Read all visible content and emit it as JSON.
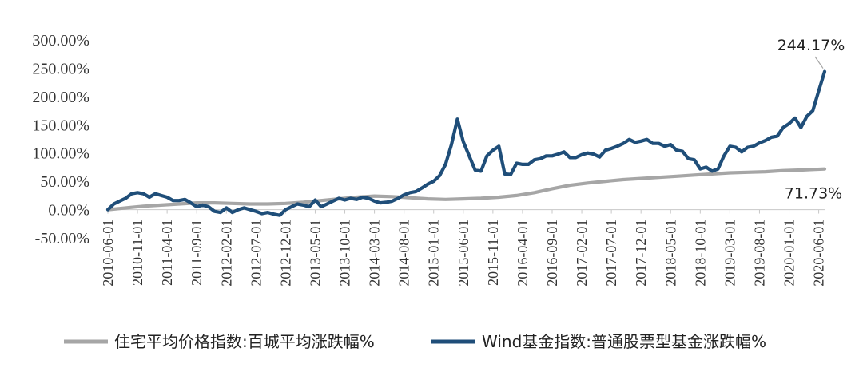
{
  "chart_data": {
    "type": "line",
    "title": "",
    "xlabel": "",
    "ylabel": "",
    "ylim": [
      -50,
      300
    ],
    "y_ticks": [
      "300.00%",
      "250.00%",
      "200.00%",
      "150.00%",
      "100.00%",
      "50.00%",
      "0.00%",
      "-50.00%"
    ],
    "y_tick_values": [
      300,
      250,
      200,
      150,
      100,
      50,
      0,
      -50
    ],
    "x_start": "2010-06",
    "x_end": "2020-07",
    "x_tick_labels": [
      "2010-06-01",
      "2010-11-01",
      "2011-04-01",
      "2011-09-01",
      "2012-02-01",
      "2012-07-01",
      "2012-12-01",
      "2013-05-01",
      "2013-10-01",
      "2014-03-01",
      "2014-08-01",
      "2015-01-01",
      "2015-06-01",
      "2015-11-01",
      "2016-04-01",
      "2016-09-01",
      "2017-02-01",
      "2017-07-01",
      "2017-12-01",
      "2018-05-01",
      "2018-10-01",
      "2019-03-01",
      "2019-08-01",
      "2020-01-01",
      "2020-06-01"
    ],
    "legend": "bottom",
    "grid": false,
    "series": [
      {
        "name": "住宅平均价格指数:百城平均涨跌幅%",
        "color": "#a6a6a6",
        "end_label": "71.73%",
        "points": [
          [
            "2010-06",
            0
          ],
          [
            "2010-08",
            2
          ],
          [
            "2010-10",
            4
          ],
          [
            "2010-12",
            6
          ],
          [
            "2011-03",
            8
          ],
          [
            "2011-06",
            10
          ],
          [
            "2011-09",
            12
          ],
          [
            "2011-12",
            12
          ],
          [
            "2012-03",
            11
          ],
          [
            "2012-06",
            10
          ],
          [
            "2012-09",
            10
          ],
          [
            "2012-12",
            11
          ],
          [
            "2013-03",
            13
          ],
          [
            "2013-06",
            16
          ],
          [
            "2013-09",
            19
          ],
          [
            "2013-12",
            22
          ],
          [
            "2014-03",
            24
          ],
          [
            "2014-06",
            23
          ],
          [
            "2014-09",
            21
          ],
          [
            "2014-12",
            19
          ],
          [
            "2015-03",
            18
          ],
          [
            "2015-06",
            19
          ],
          [
            "2015-09",
            20
          ],
          [
            "2015-12",
            22
          ],
          [
            "2016-03",
            25
          ],
          [
            "2016-06",
            30
          ],
          [
            "2016-09",
            37
          ],
          [
            "2016-12",
            43
          ],
          [
            "2017-03",
            47
          ],
          [
            "2017-06",
            50
          ],
          [
            "2017-09",
            53
          ],
          [
            "2017-12",
            55
          ],
          [
            "2018-03",
            57
          ],
          [
            "2018-06",
            59
          ],
          [
            "2018-09",
            61
          ],
          [
            "2018-12",
            63
          ],
          [
            "2019-03",
            65
          ],
          [
            "2019-06",
            66
          ],
          [
            "2019-09",
            67
          ],
          [
            "2019-12",
            69
          ],
          [
            "2020-03",
            70
          ],
          [
            "2020-05",
            71
          ],
          [
            "2020-07",
            71.73
          ]
        ]
      },
      {
        "name": "Wind基金指数:普通股票型基金涨跌幅%",
        "color": "#1f4e79",
        "end_label": "244.17%",
        "points": [
          [
            "2010-06",
            0
          ],
          [
            "2010-07",
            10
          ],
          [
            "2010-08",
            15
          ],
          [
            "2010-09",
            20
          ],
          [
            "2010-10",
            28
          ],
          [
            "2010-11",
            30
          ],
          [
            "2010-12",
            28
          ],
          [
            "2011-01",
            22
          ],
          [
            "2011-02",
            28
          ],
          [
            "2011-03",
            25
          ],
          [
            "2011-04",
            22
          ],
          [
            "2011-05",
            16
          ],
          [
            "2011-06",
            16
          ],
          [
            "2011-07",
            18
          ],
          [
            "2011-08",
            12
          ],
          [
            "2011-09",
            5
          ],
          [
            "2011-10",
            8
          ],
          [
            "2011-11",
            5
          ],
          [
            "2011-12",
            -3
          ],
          [
            "2012-01",
            -5
          ],
          [
            "2012-02",
            3
          ],
          [
            "2012-03",
            -5
          ],
          [
            "2012-04",
            0
          ],
          [
            "2012-05",
            3
          ],
          [
            "2012-06",
            0
          ],
          [
            "2012-07",
            -3
          ],
          [
            "2012-08",
            -7
          ],
          [
            "2012-09",
            -5
          ],
          [
            "2012-10",
            -8
          ],
          [
            "2012-11",
            -10
          ],
          [
            "2012-12",
            0
          ],
          [
            "2013-01",
            5
          ],
          [
            "2013-02",
            10
          ],
          [
            "2013-03",
            8
          ],
          [
            "2013-04",
            5
          ],
          [
            "2013-05",
            17
          ],
          [
            "2013-06",
            5
          ],
          [
            "2013-07",
            10
          ],
          [
            "2013-08",
            15
          ],
          [
            "2013-09",
            20
          ],
          [
            "2013-10",
            17
          ],
          [
            "2013-11",
            20
          ],
          [
            "2013-12",
            18
          ],
          [
            "2014-01",
            22
          ],
          [
            "2014-02",
            20
          ],
          [
            "2014-03",
            15
          ],
          [
            "2014-04",
            12
          ],
          [
            "2014-05",
            13
          ],
          [
            "2014-06",
            15
          ],
          [
            "2014-07",
            20
          ],
          [
            "2014-08",
            26
          ],
          [
            "2014-09",
            30
          ],
          [
            "2014-10",
            32
          ],
          [
            "2014-11",
            38
          ],
          [
            "2014-12",
            45
          ],
          [
            "2015-01",
            50
          ],
          [
            "2015-02",
            60
          ],
          [
            "2015-03",
            80
          ],
          [
            "2015-04",
            115
          ],
          [
            "2015-05",
            160
          ],
          [
            "2015-06",
            120
          ],
          [
            "2015-07",
            95
          ],
          [
            "2015-08",
            70
          ],
          [
            "2015-09",
            68
          ],
          [
            "2015-10",
            95
          ],
          [
            "2015-11",
            105
          ],
          [
            "2015-12",
            112
          ],
          [
            "2016-01",
            63
          ],
          [
            "2016-02",
            62
          ],
          [
            "2016-03",
            82
          ],
          [
            "2016-04",
            80
          ],
          [
            "2016-05",
            80
          ],
          [
            "2016-06",
            88
          ],
          [
            "2016-07",
            90
          ],
          [
            "2016-08",
            95
          ],
          [
            "2016-09",
            95
          ],
          [
            "2016-10",
            98
          ],
          [
            "2016-11",
            102
          ],
          [
            "2016-12",
            92
          ],
          [
            "2017-01",
            92
          ],
          [
            "2017-02",
            97
          ],
          [
            "2017-03",
            100
          ],
          [
            "2017-04",
            98
          ],
          [
            "2017-05",
            93
          ],
          [
            "2017-06",
            105
          ],
          [
            "2017-07",
            108
          ],
          [
            "2017-08",
            112
          ],
          [
            "2017-09",
            117
          ],
          [
            "2017-10",
            124
          ],
          [
            "2017-11",
            119
          ],
          [
            "2017-12",
            121
          ],
          [
            "2018-01",
            124
          ],
          [
            "2018-02",
            117
          ],
          [
            "2018-03",
            117
          ],
          [
            "2018-04",
            112
          ],
          [
            "2018-05",
            115
          ],
          [
            "2018-06",
            105
          ],
          [
            "2018-07",
            103
          ],
          [
            "2018-08",
            90
          ],
          [
            "2018-09",
            88
          ],
          [
            "2018-10",
            72
          ],
          [
            "2018-11",
            75
          ],
          [
            "2018-12",
            68
          ],
          [
            "2019-01",
            72
          ],
          [
            "2019-02",
            95
          ],
          [
            "2019-03",
            112
          ],
          [
            "2019-04",
            110
          ],
          [
            "2019-05",
            102
          ],
          [
            "2019-06",
            110
          ],
          [
            "2019-07",
            112
          ],
          [
            "2019-08",
            118
          ],
          [
            "2019-09",
            122
          ],
          [
            "2019-10",
            128
          ],
          [
            "2019-11",
            130
          ],
          [
            "2019-12",
            145
          ],
          [
            "2020-01",
            152
          ],
          [
            "2020-02",
            162
          ],
          [
            "2020-03",
            145
          ],
          [
            "2020-04",
            165
          ],
          [
            "2020-05",
            175
          ],
          [
            "2020-06",
            210
          ],
          [
            "2020-07",
            244.17
          ]
        ]
      }
    ]
  }
}
